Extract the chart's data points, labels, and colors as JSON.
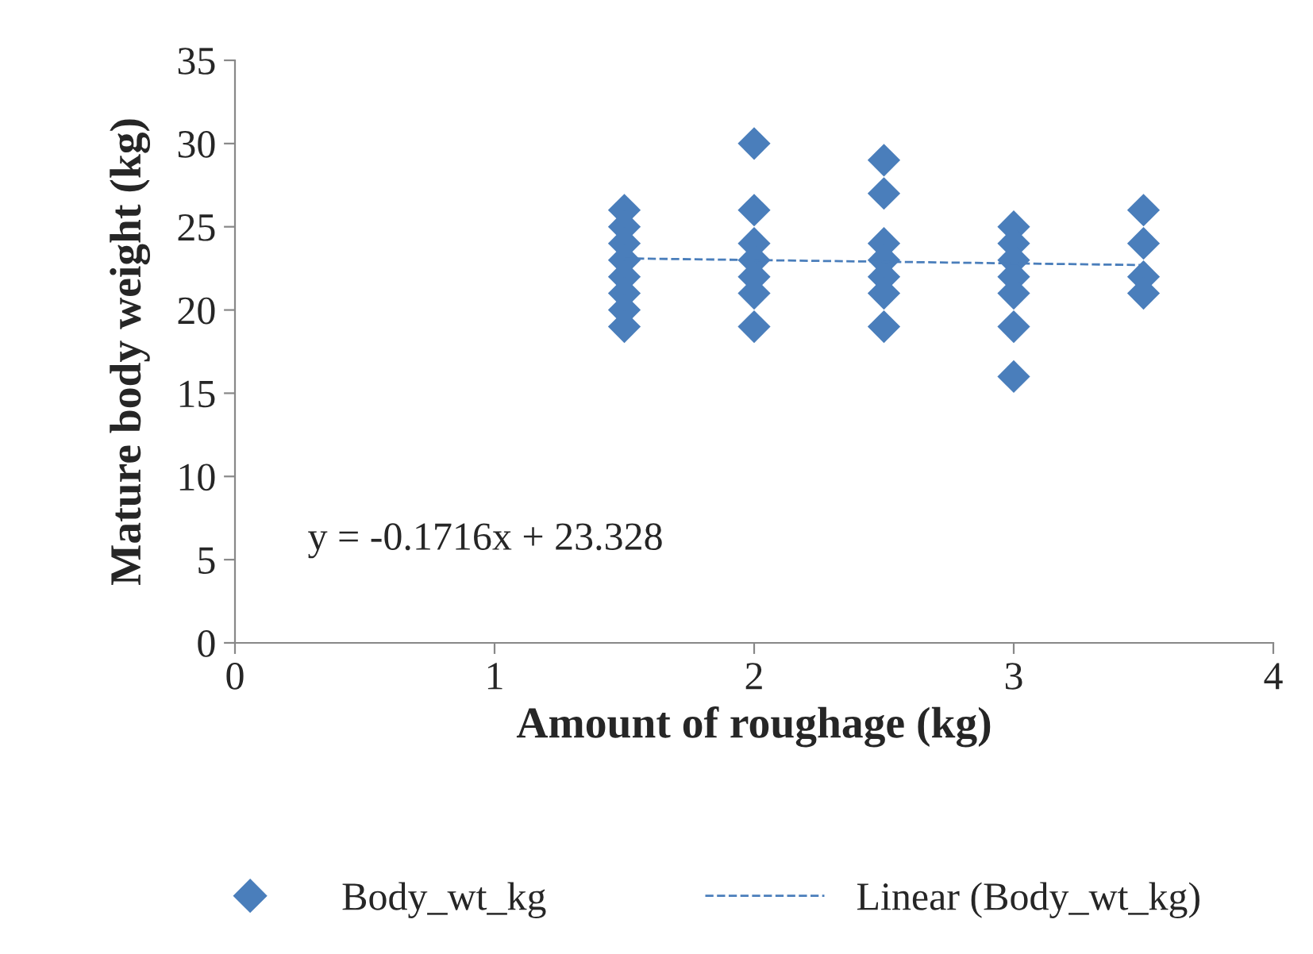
{
  "chart_data": {
    "type": "scatter",
    "xlabel": "Amount of roughage (kg)",
    "ylabel": "Mature body weight (kg)",
    "xlim": [
      0,
      4
    ],
    "xticks": [
      0,
      1,
      2,
      3,
      4
    ],
    "ylim": [
      0,
      35
    ],
    "yticks": [
      0,
      5,
      10,
      15,
      20,
      25,
      30,
      35
    ],
    "grid": false,
    "legend": "bottom",
    "annotations": [
      "y = -0.1716x + 23.328"
    ],
    "series": [
      {
        "name": "Body_wt_kg",
        "color": "#4a7ebb",
        "marker": "diamond",
        "x": [
          1.5,
          1.5,
          1.5,
          1.5,
          1.5,
          1.5,
          1.5,
          1.5,
          2,
          2,
          2,
          2,
          2,
          2,
          2,
          2.5,
          2.5,
          2.5,
          2.5,
          2.5,
          2.5,
          2.5,
          3,
          3,
          3,
          3,
          3,
          3,
          3,
          3.5,
          3.5,
          3.5,
          3.5
        ],
        "values": [
          26,
          25,
          24,
          23,
          22,
          21,
          20,
          19,
          30,
          26,
          24,
          23,
          22,
          21,
          19,
          29,
          27,
          24,
          23,
          22,
          21,
          19,
          25,
          24,
          23,
          22,
          21,
          19,
          16,
          26,
          24,
          22,
          21
        ]
      },
      {
        "name": "Linear (Body_wt_kg)",
        "type": "line",
        "color": "#4a7ebb",
        "line_style": "dashed",
        "marker": "none",
        "x": [
          1.5,
          3.5
        ],
        "values": [
          23.1,
          22.7
        ]
      }
    ]
  }
}
